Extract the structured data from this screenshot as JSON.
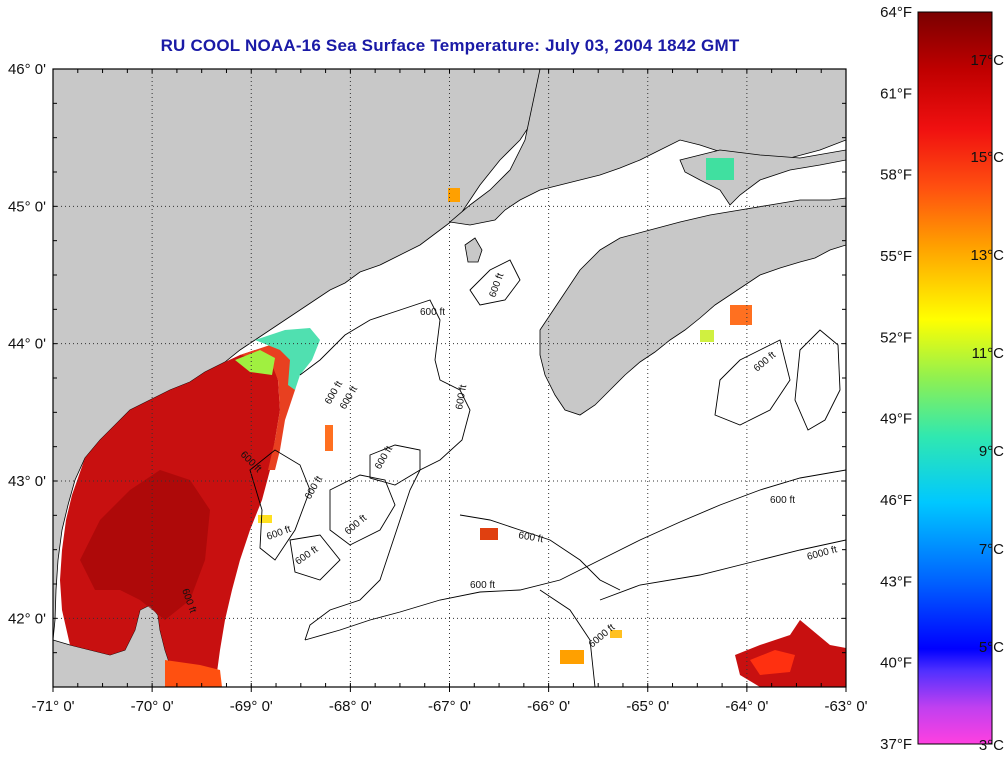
{
  "title": "RU COOL  NOAA-16  Sea Surface Temperature:  July 03, 2004 1842 GMT",
  "axes": {
    "lon_labels": [
      "-71° 0'",
      "-70° 0'",
      "-69° 0'",
      "-68° 0'",
      "-67° 0'",
      "-66° 0'",
      "-65° 0'",
      "-64° 0'",
      "-63° 0'"
    ],
    "lat_labels": [
      "46° 0'",
      "45° 0'",
      "44° 0'",
      "43° 0'",
      "42° 0'"
    ],
    "lon_range": [
      -71,
      -63
    ],
    "lat_range": [
      41.5,
      46.0
    ],
    "grid": "dotted"
  },
  "contour_labels": [
    "600 ft",
    "600 ft",
    "600 ft",
    "600 ft",
    "600 ft",
    "600 ft",
    "600 ft",
    "600 ft",
    "600 ft",
    "600 ft",
    "600 ft",
    "600 ft",
    "600 ft",
    "6000 ft",
    "6000 ft",
    "600 ft",
    "600 ft",
    "600 ft"
  ],
  "colorbar": {
    "fahrenheit_labels": [
      "64°F",
      "61°F",
      "58°F",
      "55°F",
      "52°F",
      "49°F",
      "46°F",
      "43°F",
      "40°F",
      "37°F"
    ],
    "celsius_labels": [
      "17°C",
      "15°C",
      "13°C",
      "11°C",
      "9°C",
      "7°C",
      "5°C",
      "3°C"
    ],
    "colors": [
      "#ff40e0",
      "#8040ff",
      "#0000ff",
      "#0060ff",
      "#00c0ff",
      "#40e0b0",
      "#80f060",
      "#ffff00",
      "#ffa000",
      "#ff5000",
      "#ff1000",
      "#c00000",
      "#800000"
    ]
  },
  "colors": {
    "land": "#c8c8c8",
    "water": "#ffffff",
    "sst_hot": "#c81010",
    "sst_warm": "#e83020",
    "title": "#1a1aa6"
  }
}
